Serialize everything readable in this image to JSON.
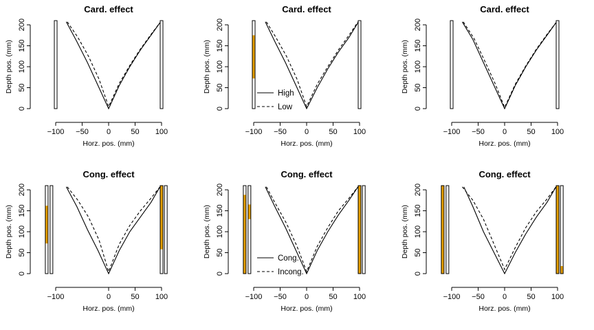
{
  "colors": {
    "bar_fill": "#E69F00",
    "line": "#000000",
    "background": "#ffffff"
  },
  "chart_data": [
    {
      "type": "line",
      "title": "Card. effect",
      "xlabel": "Horz. pos. (mm)",
      "ylabel": "Depth pos. (mm)",
      "xlim": [
        -125,
        112
      ],
      "ylim": [
        0,
        210
      ],
      "xticks": [
        "−100",
        "−50",
        "0",
        "50",
        "100"
      ],
      "yticks": [
        "0",
        "50",
        "100",
        "150",
        "200"
      ],
      "series": [
        {
          "style": "solid",
          "x": [
            -80,
            -60,
            -40,
            -20,
            0,
            20,
            40,
            60,
            80,
            97
          ],
          "y": [
            207,
            160,
            110,
            55,
            0,
            55,
            100,
            140,
            175,
            205
          ]
        },
        {
          "style": "dashed",
          "x": [
            -78,
            -58,
            -38,
            -18,
            0,
            20,
            40,
            60,
            80,
            97
          ],
          "y": [
            207,
            170,
            125,
            70,
            5,
            60,
            103,
            142,
            177,
            205
          ]
        }
      ],
      "bars": [
        {
          "x_center": -100,
          "outline": [
            0,
            210
          ],
          "fill": null
        },
        {
          "x_center": 100,
          "outline": [
            0,
            210
          ],
          "fill": null
        }
      ]
    },
    {
      "type": "line",
      "title": "Card. effect",
      "xlabel": "Horz. pos. (mm)",
      "ylabel": "Depth pos. (mm)",
      "xlim": [
        -125,
        112
      ],
      "ylim": [
        0,
        210
      ],
      "xticks": [
        "−100",
        "−50",
        "0",
        "50",
        "100"
      ],
      "yticks": [
        "0",
        "50",
        "100",
        "150",
        "200"
      ],
      "legend": {
        "position": "bottom-left",
        "entries": [
          {
            "label": "High",
            "style": "solid"
          },
          {
            "label": "Low",
            "style": "dashed"
          }
        ]
      },
      "series": [
        {
          "style": "solid",
          "x": [
            -78,
            -60,
            -40,
            -20,
            0,
            20,
            40,
            60,
            80,
            97
          ],
          "y": [
            207,
            160,
            110,
            55,
            0,
            50,
            95,
            135,
            170,
            205
          ]
        },
        {
          "style": "dashed",
          "x": [
            -76,
            -58,
            -38,
            -18,
            0,
            20,
            40,
            60,
            80,
            97
          ],
          "y": [
            207,
            170,
            125,
            70,
            5,
            58,
            100,
            140,
            175,
            207
          ]
        }
      ],
      "bars": [
        {
          "x_center": -100,
          "outline": [
            0,
            210
          ],
          "fill": [
            72,
            175
          ]
        },
        {
          "x_center": 100,
          "outline": [
            0,
            210
          ],
          "fill": null
        }
      ]
    },
    {
      "type": "line",
      "title": "Card. effect",
      "xlabel": "Horz. pos. (mm)",
      "ylabel": "Depth pos. (mm)",
      "xlim": [
        -125,
        112
      ],
      "ylim": [
        0,
        210
      ],
      "xticks": [
        "−100",
        "−50",
        "0",
        "50",
        "100"
      ],
      "yticks": [
        "0",
        "50",
        "100",
        "150",
        "200"
      ],
      "series": [
        {
          "style": "solid",
          "x": [
            -80,
            -60,
            -40,
            -20,
            0,
            20,
            40,
            60,
            80,
            97
          ],
          "y": [
            207,
            165,
            110,
            55,
            0,
            55,
            100,
            140,
            175,
            205
          ]
        },
        {
          "style": "dashed",
          "x": [
            -78,
            -58,
            -38,
            -18,
            0,
            20,
            40,
            60,
            80,
            97
          ],
          "y": [
            207,
            168,
            115,
            60,
            3,
            58,
            102,
            142,
            177,
            205
          ]
        }
      ],
      "bars": [
        {
          "x_center": -100,
          "outline": [
            0,
            210
          ],
          "fill": null
        },
        {
          "x_center": 100,
          "outline": [
            0,
            210
          ],
          "fill": null
        }
      ]
    },
    {
      "type": "line",
      "title": "Cong. effect",
      "xlabel": "Horz. pos. (mm)",
      "ylabel": "Depth pos. (mm)",
      "xlim": [
        -125,
        112
      ],
      "ylim": [
        0,
        210
      ],
      "xticks": [
        "−100",
        "0",
        "50",
        "100"
      ],
      "yticks": [
        "0",
        "50",
        "100",
        "150",
        "200"
      ],
      "series": [
        {
          "style": "solid",
          "x": [
            -80,
            -60,
            -40,
            -20,
            0,
            20,
            40,
            60,
            80,
            97
          ],
          "y": [
            207,
            160,
            105,
            55,
            0,
            55,
            100,
            135,
            170,
            207
          ]
        },
        {
          "style": "dashed",
          "x": [
            -78,
            -58,
            -38,
            -18,
            0,
            20,
            40,
            60,
            80,
            97
          ],
          "y": [
            207,
            175,
            135,
            80,
            5,
            70,
            115,
            150,
            180,
            207
          ]
        }
      ],
      "bars": [
        {
          "x_center": -117,
          "outline": [
            0,
            210
          ],
          "fill": [
            72,
            162
          ]
        },
        {
          "x_center": -108,
          "outline": [
            0,
            210
          ],
          "fill": null
        },
        {
          "x_center": 100,
          "outline": [
            0,
            210
          ],
          "fill": [
            58,
            210
          ]
        },
        {
          "x_center": 108,
          "outline": [
            0,
            210
          ],
          "fill": null
        }
      ]
    },
    {
      "type": "line",
      "title": "Cong. effect",
      "xlabel": "Horz. pos. (mm)",
      "ylabel": "Depth pos. (mm)",
      "xlim": [
        -125,
        112
      ],
      "ylim": [
        0,
        210
      ],
      "xticks": [
        "−100",
        "−50",
        "0",
        "50",
        "100"
      ],
      "yticks": [
        "0",
        "50",
        "100",
        "150",
        "200"
      ],
      "legend": {
        "position": "bottom-left",
        "entries": [
          {
            "label": "Cong.",
            "style": "solid"
          },
          {
            "label": "Incong.",
            "style": "dashed"
          }
        ]
      },
      "series": [
        {
          "style": "solid",
          "x": [
            -78,
            -60,
            -40,
            -20,
            0,
            20,
            40,
            60,
            80,
            97
          ],
          "y": [
            207,
            160,
            110,
            55,
            0,
            55,
            100,
            140,
            175,
            207
          ]
        },
        {
          "style": "dashed",
          "x": [
            -76,
            -58,
            -38,
            -18,
            0,
            20,
            40,
            60,
            80,
            97
          ],
          "y": [
            207,
            165,
            120,
            65,
            5,
            65,
            110,
            150,
            180,
            207
          ]
        }
      ],
      "bars": [
        {
          "x_center": -117,
          "outline": [
            0,
            210
          ],
          "fill": [
            0,
            188
          ]
        },
        {
          "x_center": -108,
          "outline": [
            0,
            210
          ],
          "fill": [
            130,
            165
          ]
        },
        {
          "x_center": 100,
          "outline": [
            0,
            210
          ],
          "fill": [
            0,
            210
          ]
        },
        {
          "x_center": 108,
          "outline": [
            0,
            210
          ],
          "fill": null
        }
      ]
    },
    {
      "type": "line",
      "title": "Cong. effect",
      "xlabel": "Horz. pos. (mm)",
      "ylabel": "Depth pos. (mm)",
      "xlim": [
        -125,
        112
      ],
      "ylim": [
        0,
        210
      ],
      "xticks": [
        "−100",
        "−50",
        "0",
        "50",
        "100"
      ],
      "yticks": [
        "0",
        "50",
        "100",
        "150",
        "200"
      ],
      "series": [
        {
          "style": "solid",
          "x": [
            -77,
            -60,
            -40,
            -20,
            0,
            20,
            40,
            60,
            80,
            97
          ],
          "y": [
            207,
            160,
            100,
            50,
            0,
            50,
            95,
            135,
            170,
            207
          ]
        },
        {
          "style": "dashed",
          "x": [
            -80,
            -60,
            -40,
            -20,
            0,
            20,
            40,
            60,
            80,
            97
          ],
          "y": [
            207,
            175,
            130,
            70,
            10,
            62,
            110,
            148,
            178,
            207
          ]
        }
      ],
      "bars": [
        {
          "x_center": -117,
          "outline": [
            0,
            210
          ],
          "fill": [
            0,
            210
          ]
        },
        {
          "x_center": -108,
          "outline": [
            0,
            210
          ],
          "fill": null
        },
        {
          "x_center": 100,
          "outline": [
            0,
            210
          ],
          "fill": [
            0,
            210
          ]
        },
        {
          "x_center": 108,
          "outline": [
            0,
            210
          ],
          "fill": [
            0,
            18
          ]
        }
      ]
    }
  ]
}
